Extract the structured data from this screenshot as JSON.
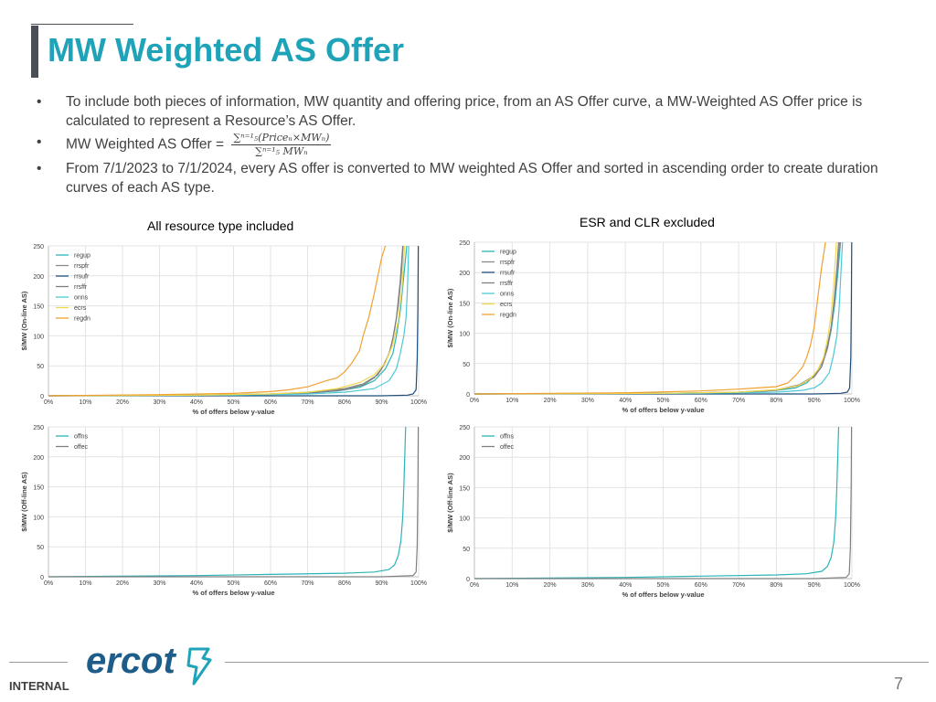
{
  "slide": {
    "title": "MW Weighted AS Offer",
    "bullet_marker": "•",
    "bullets": [
      "To include both pieces of information, MW quantity and offering price, from an AS Offer curve, a MW-Weighted AS Offer price is calculated to represent a Resource’s AS Offer.",
      "MW Weighted AS Offer =",
      "From 7/1/2023 to 7/1/2024, every AS offer is converted to MW weighted AS Offer and sorted in ascending order to create duration curves of each AS type."
    ],
    "formula_numerator": "∑ⁿ⁼¹₅(Priceₙ×MWₙ)",
    "formula_denominator": "∑ⁿ⁼¹₅ MWₙ",
    "caption_left": "All resource type included",
    "caption_right": "ESR and CLR excluded",
    "footer_label": "INTERNAL",
    "page_number": "7",
    "logo_text": "ercot"
  },
  "colors": {
    "title": "#1fa3b8",
    "regup": "#2bb3b8",
    "rrspfr": "#8c8c8c",
    "rrsufr": "#1f4e79",
    "rrsffr": "#7f7f7f",
    "onns": "#4ec8d6",
    "ecrs": "#f2d84b",
    "regdn": "#f0a030",
    "offns": "#2bb3b8",
    "offec": "#808080",
    "logo": "#1e5c8a"
  },
  "chart_data": [
    {
      "type": "line",
      "panel": "online-all",
      "ylabel": "$/MW (On-line AS)",
      "xlabel": "% of offers below y-value",
      "ylim": [
        0,
        250
      ],
      "xlim": [
        0,
        100
      ],
      "yticks": [
        "0",
        "50",
        "100",
        "150",
        "200",
        "250"
      ],
      "xticks": [
        "0%",
        "10%",
        "20%",
        "30%",
        "40%",
        "50%",
        "60%",
        "70%",
        "80%",
        "90%",
        "100%"
      ],
      "grid": true,
      "legend_position": "top-left",
      "series": [
        {
          "name": "regup",
          "color_key": "regup",
          "x": [
            0,
            40,
            60,
            70,
            78,
            84,
            88,
            91,
            93,
            94,
            95,
            96,
            96.8
          ],
          "y": [
            0,
            1,
            3,
            5,
            8,
            14,
            25,
            45,
            70,
            100,
            140,
            200,
            250
          ]
        },
        {
          "name": "rrspfr",
          "color_key": "rrspfr",
          "x": [
            0,
            40,
            60,
            70,
            80,
            85,
            89,
            91,
            92.5,
            93.5,
            94.5,
            95.3,
            95.8
          ],
          "y": [
            0,
            1,
            3,
            6,
            12,
            20,
            35,
            55,
            80,
            110,
            150,
            200,
            250
          ]
        },
        {
          "name": "rrsufr",
          "color_key": "rrsufr",
          "x": [
            0,
            50,
            90,
            97,
            98.5,
            99.3,
            99.6,
            99.8,
            99.9
          ],
          "y": [
            0,
            0,
            0,
            1,
            3,
            10,
            60,
            150,
            250
          ]
        },
        {
          "name": "rrsffr",
          "color_key": "rrsffr",
          "x": [
            0,
            40,
            60,
            70,
            80,
            85,
            88,
            90,
            92,
            93,
            94,
            95,
            95.7
          ],
          "y": [
            0,
            1,
            2,
            4,
            10,
            18,
            30,
            45,
            70,
            95,
            130,
            190,
            250
          ]
        },
        {
          "name": "onns",
          "color_key": "onns",
          "x": [
            0,
            50,
            70,
            80,
            88,
            92,
            94,
            95,
            96,
            96.6,
            97,
            97.3
          ],
          "y": [
            0,
            1,
            3,
            6,
            12,
            25,
            45,
            70,
            100,
            130,
            180,
            250
          ]
        },
        {
          "name": "ecrs",
          "color_key": "ecrs",
          "x": [
            0,
            40,
            60,
            70,
            78,
            84,
            88,
            91,
            93,
            94.5,
            95.5,
            96.2
          ],
          "y": [
            0,
            1,
            3,
            6,
            12,
            22,
            35,
            55,
            85,
            125,
            180,
            250
          ]
        },
        {
          "name": "regdn",
          "color_key": "regdn",
          "x": [
            0,
            30,
            50,
            60,
            65,
            70,
            75,
            78,
            80,
            82,
            84,
            85,
            86.5,
            88,
            89,
            90,
            91
          ],
          "y": [
            0,
            2,
            4,
            7,
            10,
            15,
            25,
            30,
            40,
            55,
            75,
            100,
            130,
            170,
            200,
            230,
            250
          ]
        }
      ]
    },
    {
      "type": "line",
      "panel": "online-excl",
      "ylabel": "$/MW (On-line AS)",
      "xlabel": "% of offers below y-value",
      "ylim": [
        0,
        250
      ],
      "xlim": [
        0,
        100
      ],
      "yticks": [
        "0",
        "50",
        "100",
        "150",
        "200",
        "250"
      ],
      "xticks": [
        "0%",
        "10%",
        "20%",
        "30%",
        "40%",
        "50%",
        "60%",
        "70%",
        "80%",
        "90%",
        "100%"
      ],
      "grid": true,
      "legend_position": "top-left",
      "series": [
        {
          "name": "regup",
          "color_key": "regup",
          "x": [
            0,
            50,
            70,
            80,
            85,
            88,
            90,
            92,
            93.5,
            94.5,
            95.5,
            96.3,
            97
          ],
          "y": [
            0,
            1,
            3,
            6,
            10,
            18,
            30,
            50,
            75,
            105,
            150,
            200,
            250
          ]
        },
        {
          "name": "rrspfr",
          "color_key": "rrspfr",
          "x": [
            0,
            50,
            70,
            80,
            86,
            90,
            92,
            93.5,
            94.5,
            95.5,
            96.2,
            96.8
          ],
          "y": [
            0,
            1,
            3,
            7,
            15,
            30,
            50,
            80,
            110,
            160,
            210,
            250
          ]
        },
        {
          "name": "rrsufr",
          "color_key": "rrsufr",
          "x": [
            0,
            50,
            90,
            97,
            98.8,
            99.4,
            99.7,
            99.85,
            99.95
          ],
          "y": [
            0,
            0,
            0,
            1,
            3,
            10,
            60,
            150,
            250
          ]
        },
        {
          "name": "rrsffr",
          "color_key": "rrsffr",
          "x": [
            0,
            50,
            70,
            80,
            86,
            90,
            92,
            93.5,
            94.5,
            95.3,
            96,
            96.5
          ],
          "y": [
            0,
            1,
            2,
            6,
            14,
            28,
            45,
            75,
            110,
            155,
            205,
            250
          ]
        },
        {
          "name": "onns",
          "color_key": "onns",
          "x": [
            0,
            60,
            80,
            87,
            90,
            92,
            94,
            95,
            96,
            96.6,
            97.1,
            97.5
          ],
          "y": [
            0,
            1,
            3,
            6,
            10,
            18,
            35,
            60,
            95,
            140,
            200,
            250
          ]
        },
        {
          "name": "ecrs",
          "color_key": "ecrs",
          "x": [
            0,
            50,
            70,
            80,
            86,
            89,
            91,
            92.5,
            93.5,
            94.5,
            95.3,
            95.9
          ],
          "y": [
            0,
            1,
            3,
            7,
            14,
            25,
            40,
            60,
            90,
            130,
            190,
            250
          ]
        },
        {
          "name": "regdn",
          "color_key": "regdn",
          "x": [
            0,
            40,
            60,
            70,
            75,
            80,
            83,
            85,
            87,
            88,
            89,
            90,
            91,
            92,
            93
          ],
          "y": [
            0,
            2,
            5,
            8,
            10,
            12,
            18,
            30,
            45,
            60,
            80,
            110,
            160,
            210,
            250
          ]
        }
      ]
    },
    {
      "type": "line",
      "panel": "offline-all",
      "ylabel": "$/MW (Off-line AS)",
      "xlabel": "% of offers below y-value",
      "ylim": [
        0,
        250
      ],
      "xlim": [
        0,
        100
      ],
      "yticks": [
        "0",
        "50",
        "100",
        "150",
        "200",
        "250"
      ],
      "xticks": [
        "0%",
        "10%",
        "20%",
        "30%",
        "40%",
        "50%",
        "60%",
        "70%",
        "80%",
        "90%",
        "100%"
      ],
      "grid": true,
      "legend_position": "top-left",
      "series": [
        {
          "name": "offns",
          "color_key": "offns",
          "x": [
            0,
            40,
            60,
            80,
            88,
            92,
            93.5,
            94.5,
            95.2,
            95.7,
            96,
            96.3,
            96.5
          ],
          "y": [
            0,
            2,
            4,
            6,
            8,
            12,
            20,
            35,
            60,
            100,
            150,
            210,
            250
          ]
        },
        {
          "name": "offec",
          "color_key": "offec",
          "x": [
            0,
            50,
            90,
            98.5,
            99.3,
            99.6,
            99.8,
            99.9
          ],
          "y": [
            0,
            0,
            0,
            2,
            8,
            50,
            150,
            250
          ]
        }
      ]
    },
    {
      "type": "line",
      "panel": "offline-excl",
      "ylabel": "$/MW (Off-line AS)",
      "xlabel": "% of offers below y-value",
      "ylim": [
        0,
        250
      ],
      "xlim": [
        0,
        100
      ],
      "yticks": [
        "0",
        "50",
        "100",
        "150",
        "200",
        "250"
      ],
      "xticks": [
        "0%",
        "10%",
        "20%",
        "30%",
        "40%",
        "50%",
        "60%",
        "70%",
        "80%",
        "90%",
        "100%"
      ],
      "grid": true,
      "legend_position": "top-left",
      "series": [
        {
          "name": "offns",
          "color_key": "offns",
          "x": [
            0,
            40,
            60,
            80,
            88,
            92,
            93.5,
            94.5,
            95.2,
            95.7,
            96,
            96.3,
            96.5
          ],
          "y": [
            0,
            2,
            4,
            6,
            8,
            12,
            20,
            35,
            60,
            100,
            150,
            210,
            250
          ]
        },
        {
          "name": "offec",
          "color_key": "offec",
          "x": [
            0,
            50,
            90,
            98.5,
            99.3,
            99.6,
            99.8,
            99.9
          ],
          "y": [
            0,
            0,
            0,
            2,
            8,
            50,
            150,
            250
          ]
        }
      ]
    }
  ]
}
